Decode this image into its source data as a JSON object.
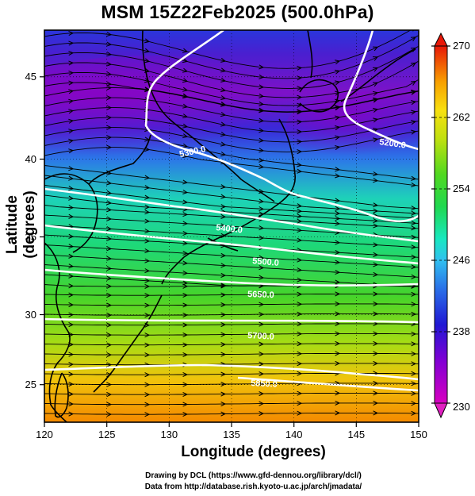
{
  "title": "MSM 15Z22Feb2025 (500.0hPa)",
  "x_axis": {
    "label": "Longitude (degrees)",
    "ticks": [
      "120",
      "125",
      "130",
      "135",
      "140",
      "145",
      "150"
    ],
    "range": [
      120,
      150
    ]
  },
  "y_axis": {
    "label": "Latitude  (degrees)",
    "ticks": [
      "25",
      "30",
      "35",
      "40",
      "45"
    ],
    "range": [
      22.4,
      47.6
    ]
  },
  "colorbar": {
    "ticks": [
      "230",
      "238",
      "246",
      "254",
      "262",
      "270"
    ],
    "range": [
      230,
      270
    ],
    "colors": [
      "#c000c0",
      "#7a00d8",
      "#2020d8",
      "#2a6ae6",
      "#30b8f0",
      "#18e8b4",
      "#30d830",
      "#a8e018",
      "#f0e010",
      "#f8a000",
      "#f06000",
      "#e01010"
    ]
  },
  "contours": [
    {
      "label": "5200.0",
      "lat_west": null,
      "lat_east": 40.8
    },
    {
      "label": "5300.0",
      "lat_west": 38.3,
      "lat_east": 36.6
    },
    {
      "label": "5400.0",
      "lat_west": 36.0,
      "lat_east": 33.5
    },
    {
      "label": "5500.0",
      "lat_west": 33.2,
      "lat_east": 32.1
    },
    {
      "label": "5650.0",
      "lat_west": 30.0,
      "lat_east": 29.2
    },
    {
      "label": "5700.0",
      "lat_west": 26.3,
      "lat_east": 24.6
    },
    {
      "label": "5850.0",
      "lat_west": null,
      "lat_east": null
    }
  ],
  "credits": {
    "line1": "Drawing by DCL (https://www.gfd-dennou.org/library/dcl/)",
    "line2": "Data from http://database.rish.kyoto-u.ac.jp/arch/jmadata/"
  }
}
